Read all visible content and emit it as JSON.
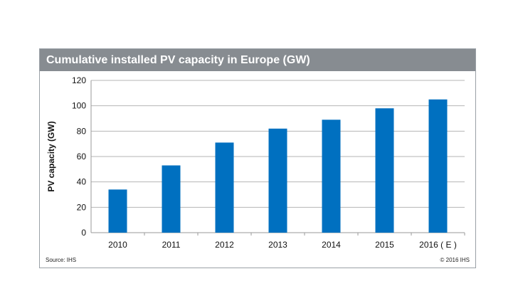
{
  "chart_data": {
    "type": "bar",
    "title": "Cumulative installed PV capacity in Europe (GW)",
    "ylabel": "PV capacity (GW)",
    "xlabel": "",
    "categories": [
      "2010",
      "2011",
      "2012",
      "2013",
      "2014",
      "2015",
      "2016 ( E )"
    ],
    "values": [
      34,
      53,
      71,
      82,
      89,
      98,
      105
    ],
    "ylim": [
      0,
      120
    ],
    "yticks": [
      0,
      20,
      40,
      60,
      80,
      100,
      120
    ],
    "grid": true,
    "bar_color": "#0070c0",
    "header_color": "#878c91"
  },
  "footer": {
    "source": "Source: IHS",
    "copyright": "© 2016 IHS"
  }
}
